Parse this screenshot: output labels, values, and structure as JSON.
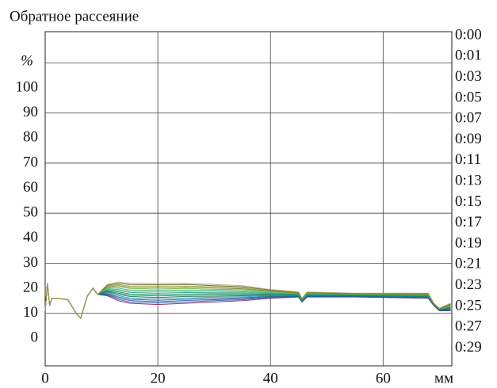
{
  "chart_data": {
    "type": "line",
    "title": "Обратное рассеяние",
    "ylabel": "%",
    "xlabel": "мм",
    "x": [
      0,
      0.4,
      0.8,
      1.2,
      2,
      4,
      5.5,
      6.3,
      7.5,
      8.5,
      9.3,
      11,
      13,
      15,
      20,
      25,
      30,
      35,
      40,
      45,
      45.6,
      46.5,
      55,
      68,
      69,
      70,
      72
    ],
    "xlim": [
      0,
      72.2
    ],
    "ylim": [
      -11,
      122.5
    ],
    "xticks": [
      0,
      20,
      40,
      60
    ],
    "yticks": [
      0,
      10,
      20,
      30,
      40,
      50,
      60,
      70,
      80,
      90,
      100
    ],
    "xgrid": [
      20,
      40,
      60
    ],
    "ygrid": [
      10,
      30,
      50,
      70,
      90,
      110
    ],
    "series": [
      {
        "name": "0:00",
        "color": "#7a1a5e",
        "values": [
          11,
          22,
          13,
          16,
          16,
          15.5,
          10,
          8,
          17,
          20,
          17.5,
          17,
          15,
          14,
          13.5,
          14,
          14.5,
          15,
          16,
          16.5,
          14.5,
          16.5,
          16.5,
          16,
          13,
          11,
          11
        ]
      },
      {
        "name": "0:01",
        "color": "#2b55a8",
        "values": [
          11,
          22,
          13,
          16,
          16,
          15.5,
          10,
          8,
          17,
          20,
          17.5,
          17.3,
          15.5,
          14.5,
          14.1,
          14.5,
          15,
          15.4,
          16.2,
          16.6,
          14.6,
          16.6,
          16.6,
          16.1,
          13.1,
          11.1,
          11.2
        ]
      },
      {
        "name": "0:03",
        "color": "#1d4f9c",
        "values": [
          11,
          22,
          13,
          16,
          16,
          15.5,
          10,
          8,
          17,
          20,
          17.5,
          17.6,
          16,
          15.1,
          14.6,
          15.1,
          15.4,
          15.8,
          16.5,
          16.8,
          14.7,
          16.8,
          16.7,
          16.3,
          13.1,
          11.1,
          11.4
        ]
      },
      {
        "name": "0:05",
        "color": "#1a4d82",
        "values": [
          11,
          22,
          13,
          16,
          16,
          15.5,
          10,
          8,
          17,
          20,
          17.5,
          17.9,
          16.5,
          15.6,
          15.2,
          15.6,
          15.9,
          16.2,
          16.7,
          16.9,
          14.8,
          16.9,
          16.8,
          16.4,
          13.2,
          11.2,
          11.6
        ]
      },
      {
        "name": "0:07",
        "color": "#2a9ab4",
        "values": [
          11,
          22,
          13,
          16,
          16,
          15.5,
          10,
          8,
          17,
          20,
          17.5,
          18.2,
          17,
          16.1,
          15.8,
          16.1,
          16.4,
          16.6,
          16.9,
          17,
          14.9,
          17,
          16.9,
          16.5,
          13.3,
          11.3,
          11.8
        ]
      },
      {
        "name": "0:09",
        "color": "#0c6a5c",
        "values": [
          11,
          22,
          13,
          16,
          16,
          15.5,
          10,
          8,
          17,
          20,
          17.5,
          18.5,
          17.5,
          16.7,
          16.3,
          16.7,
          16.8,
          17,
          17.2,
          17.2,
          15,
          17.2,
          17,
          16.7,
          13.3,
          11.3,
          12
        ]
      },
      {
        "name": "0:11",
        "color": "#0d7a5e",
        "values": [
          11,
          22,
          13,
          16,
          16,
          15.5,
          10,
          8,
          17,
          20,
          17.5,
          18.8,
          18,
          17.2,
          16.9,
          17.2,
          17.3,
          17.4,
          17.4,
          17.3,
          15.1,
          17.3,
          17.1,
          16.8,
          13.4,
          11.4,
          12.2
        ]
      },
      {
        "name": "0:13",
        "color": "#0e8a5c",
        "values": [
          11,
          22,
          13,
          16,
          16,
          15.5,
          10,
          8,
          17,
          20,
          17.5,
          19.1,
          18.5,
          17.7,
          17.5,
          17.7,
          17.8,
          17.8,
          17.6,
          17.4,
          15.2,
          17.4,
          17.2,
          16.9,
          13.5,
          11.5,
          12.4
        ]
      },
      {
        "name": "0:15",
        "color": "#1b9a6c",
        "values": [
          11,
          22,
          13,
          16,
          16,
          15.5,
          10,
          8,
          17,
          20,
          17.5,
          19.4,
          19,
          18.3,
          18,
          18.3,
          18.2,
          18.2,
          17.9,
          17.6,
          15.3,
          17.6,
          17.3,
          17.1,
          13.5,
          11.5,
          12.6
        ]
      },
      {
        "name": "0:17",
        "color": "#3cb08c",
        "values": [
          11,
          22,
          13,
          16,
          16,
          15.5,
          10,
          8,
          17,
          20,
          17.5,
          19.7,
          19.5,
          18.8,
          18.6,
          18.8,
          18.7,
          18.6,
          18.1,
          17.7,
          15.4,
          17.7,
          17.4,
          17.2,
          13.6,
          11.6,
          12.8
        ]
      },
      {
        "name": "0:19",
        "color": "#3fb072",
        "values": [
          11,
          22,
          13,
          16,
          16,
          15.5,
          10,
          8,
          17,
          20,
          17.5,
          20,
          20,
          19.3,
          19.2,
          19.3,
          19.2,
          19,
          18.3,
          17.8,
          15.5,
          17.8,
          17.5,
          17.3,
          13.7,
          11.7,
          13
        ]
      },
      {
        "name": "0:21",
        "color": "#6cb042",
        "values": [
          11,
          22,
          13,
          16,
          16,
          15.5,
          10,
          8,
          17,
          20,
          17.5,
          20.3,
          20.5,
          19.9,
          19.7,
          19.9,
          19.6,
          19.4,
          18.6,
          18,
          15.6,
          18,
          17.6,
          17.5,
          13.7,
          11.7,
          13.2
        ]
      },
      {
        "name": "0:23",
        "color": "#6b7a22",
        "values": [
          11,
          22,
          13,
          16,
          16,
          15.5,
          10,
          8,
          17,
          20,
          17.5,
          20.6,
          21,
          20.4,
          20.3,
          20.4,
          20.1,
          19.8,
          18.8,
          18.1,
          15.7,
          18.1,
          17.7,
          17.6,
          13.8,
          11.8,
          13.4
        ]
      },
      {
        "name": "0:25",
        "color": "#8a9a32",
        "values": [
          11,
          22,
          13,
          16,
          16,
          15.5,
          10,
          8,
          17,
          20,
          17.5,
          20.9,
          21.5,
          20.9,
          20.9,
          20.9,
          20.6,
          20.2,
          19,
          18.2,
          15.8,
          18.2,
          17.8,
          17.7,
          13.9,
          11.9,
          13.6
        ]
      },
      {
        "name": "0:27",
        "color": "#5a5a12",
        "values": [
          11,
          22,
          13,
          16,
          16,
          15.5,
          10,
          8,
          17,
          20,
          17.5,
          21.2,
          22,
          21.5,
          21.4,
          21.5,
          21,
          20.6,
          19.3,
          18.4,
          15.9,
          18.4,
          17.9,
          17.9,
          13.9,
          11.9,
          13.8
        ]
      },
      {
        "name": "0:29",
        "color": "#b4a262",
        "values": [
          11,
          22,
          13,
          16,
          16,
          15.5,
          10,
          8,
          17,
          20,
          17.5,
          21.5,
          22.5,
          22,
          22,
          22,
          21.5,
          21,
          19.5,
          18.5,
          16,
          18.5,
          18,
          18,
          14,
          12,
          14
        ]
      }
    ]
  }
}
